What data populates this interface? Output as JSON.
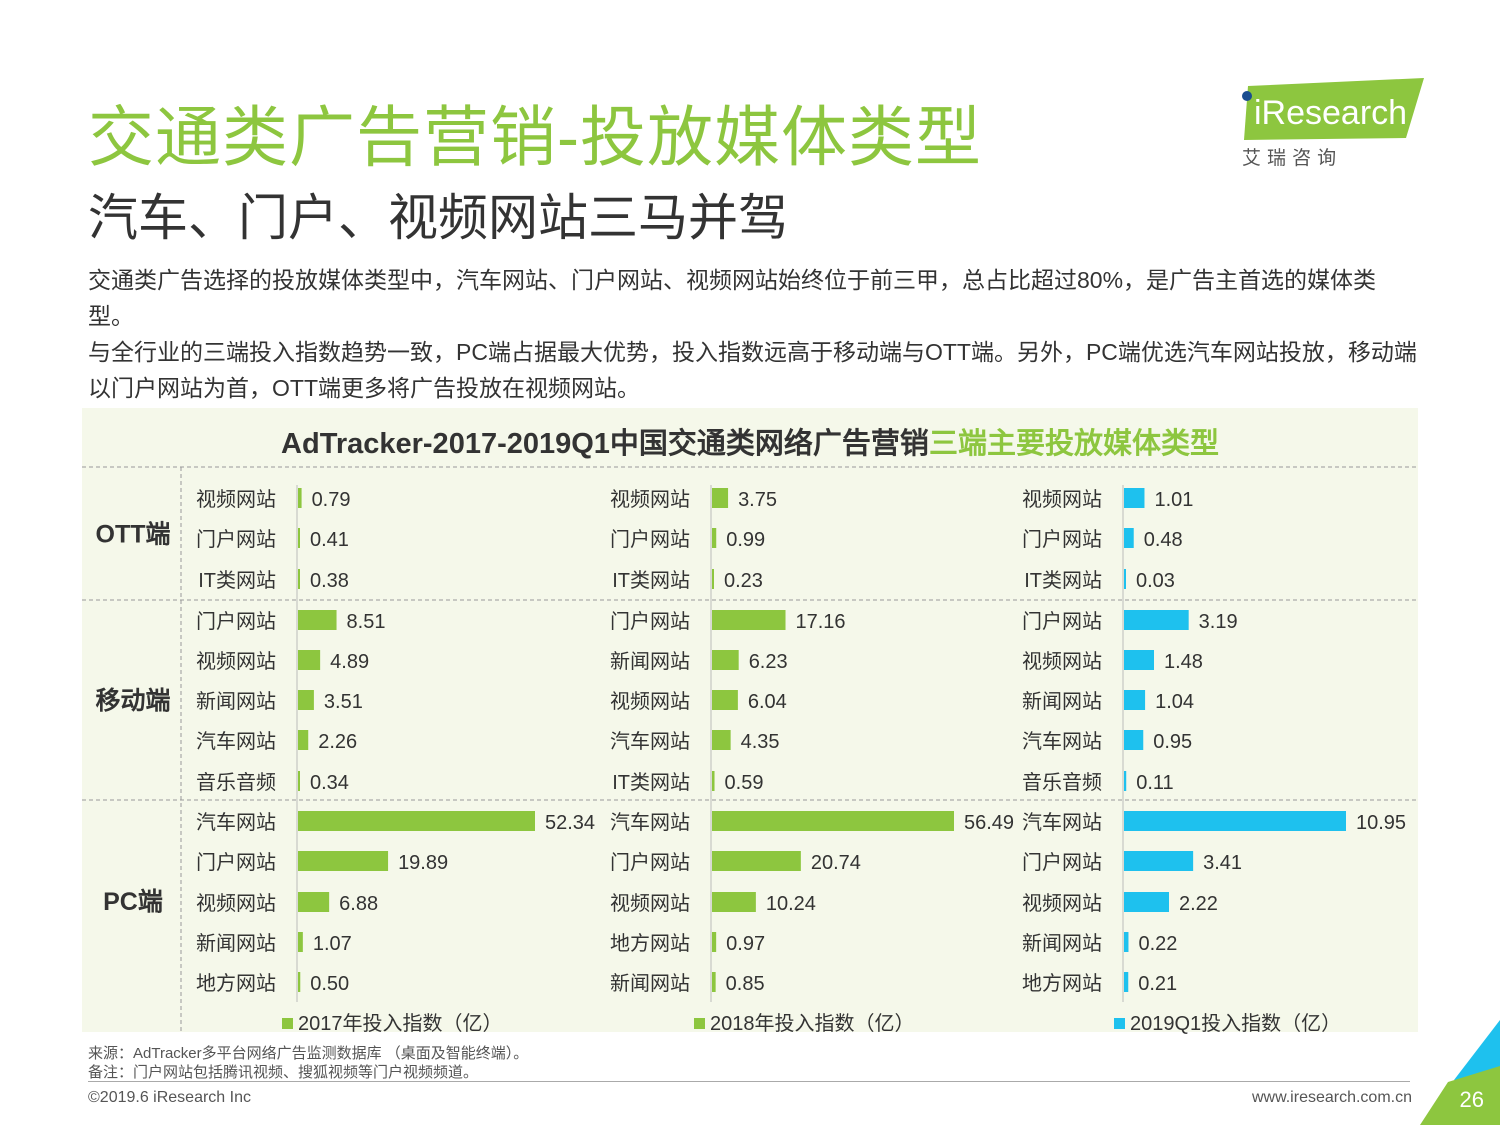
{
  "title": "交通类广告营销-投放媒体类型",
  "subtitle": "汽车、门户、视频网站三马并驾",
  "paragraph1": "交通类广告选择的投放媒体类型中，汽车网站、门户网站、视频网站始终位于前三甲，总占比超过80%，是广告主首选的媒体类型。",
  "paragraph2": "与全行业的三端投入指数趋势一致，PC端占据最大优势，投入指数远高于移动端与OTT端。另外，PC端优选汽车网站投放，移动端以门户网站为首，OTT端更多将广告投放在视频网站。",
  "logo": {
    "text": "iResearch",
    "sub": "艾 瑞 咨 询"
  },
  "chart_title": {
    "part1": "AdTracker-2017-2019Q1中国交通类网络广告营销",
    "part2": "三端主要投放媒体类型"
  },
  "colors": {
    "accent": "#8dc63f",
    "green_bar": "#8dc63f",
    "blue_bar": "#1ec1ee"
  },
  "chart_data": {
    "type": "bar",
    "orientation": "horizontal",
    "groups": [
      "OTT端",
      "移动端",
      "PC端"
    ],
    "series": [
      {
        "name": "2017年投入指数（亿）",
        "color": "#8dc63f",
        "data": {
          "OTT端": {
            "categories": [
              "视频网站",
              "门户网站",
              "IT类网站"
            ],
            "values": [
              0.79,
              0.41,
              0.38
            ],
            "labels": [
              "0.79",
              "0.41",
              "0.38"
            ]
          },
          "移动端": {
            "categories": [
              "门户网站",
              "视频网站",
              "新闻网站",
              "汽车网站",
              "音乐音频"
            ],
            "values": [
              8.51,
              4.89,
              3.51,
              2.26,
              0.34
            ],
            "labels": [
              "8.51",
              "4.89",
              "3.51",
              "2.26",
              "0.34"
            ]
          },
          "PC端": {
            "categories": [
              "汽车网站",
              "门户网站",
              "视频网站",
              "新闻网站",
              "地方网站"
            ],
            "values": [
              52.34,
              19.89,
              6.88,
              1.07,
              0.5
            ],
            "labels": [
              "52.34",
              "19.89",
              "6.88",
              "1.07",
              "0.50"
            ]
          }
        }
      },
      {
        "name": "2018年投入指数（亿）",
        "color": "#8dc63f",
        "data": {
          "OTT端": {
            "categories": [
              "视频网站",
              "门户网站",
              "IT类网站"
            ],
            "values": [
              3.75,
              0.99,
              0.23
            ],
            "labels": [
              "3.75",
              "0.99",
              "0.23"
            ]
          },
          "移动端": {
            "categories": [
              "门户网站",
              "新闻网站",
              "视频网站",
              "汽车网站",
              "IT类网站"
            ],
            "values": [
              17.16,
              6.23,
              6.04,
              4.35,
              0.59
            ],
            "labels": [
              "17.16",
              "6.23",
              "6.04",
              "4.35",
              "0.59"
            ]
          },
          "PC端": {
            "categories": [
              "汽车网站",
              "门户网站",
              "视频网站",
              "地方网站",
              "新闻网站"
            ],
            "values": [
              56.49,
              20.74,
              10.24,
              0.97,
              0.85
            ],
            "labels": [
              "56.49",
              "20.74",
              "10.24",
              "0.97",
              "0.85"
            ]
          }
        }
      },
      {
        "name": "2019Q1投入指数（亿）",
        "color": "#1ec1ee",
        "data": {
          "OTT端": {
            "categories": [
              "视频网站",
              "门户网站",
              "IT类网站"
            ],
            "values": [
              1.01,
              0.48,
              0.03
            ],
            "labels": [
              "1.01",
              "0.48",
              "0.03"
            ]
          },
          "移动端": {
            "categories": [
              "门户网站",
              "视频网站",
              "新闻网站",
              "汽车网站",
              "音乐音频"
            ],
            "values": [
              3.19,
              1.48,
              1.04,
              0.95,
              0.11
            ],
            "labels": [
              "3.19",
              "1.48",
              "1.04",
              "0.95",
              "0.11"
            ]
          },
          "PC端": {
            "categories": [
              "汽车网站",
              "门户网站",
              "视频网站",
              "新闻网站",
              "地方网站"
            ],
            "values": [
              10.95,
              3.41,
              2.22,
              0.22,
              0.21
            ],
            "labels": [
              "10.95",
              "3.41",
              "2.22",
              "0.22",
              "0.21"
            ]
          }
        }
      }
    ]
  },
  "source_line": "来源：AdTracker多平台网络广告监测数据库 （桌面及智能终端）。",
  "note_line": "备注：门户网站包括腾讯视频、搜狐视频等门户视频频道。",
  "copyright": "©2019.6 iResearch Inc",
  "website": "www.iresearch.com.cn",
  "page_number": "26"
}
